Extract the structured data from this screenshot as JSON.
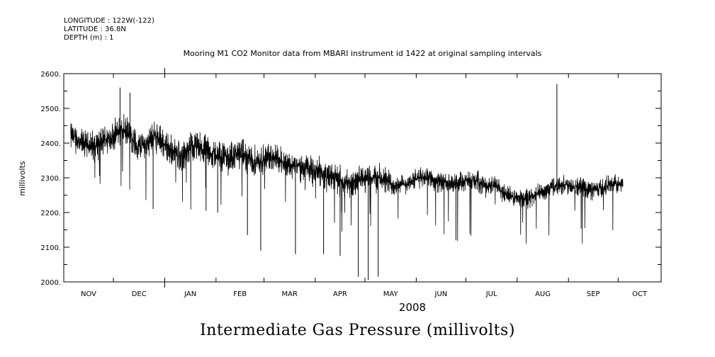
{
  "header": {
    "longitude": "LONGITUDE : 122W(-122)",
    "latitude": "LATITUDE : 36.8N",
    "depth": "DEPTH (m) : 1"
  },
  "caption": "Intermediate Gas Pressure (millivolts)",
  "chart_data": {
    "type": "line",
    "title": "Mooring M1 CO2 Monitor data from MBARI instrument id 1422 at original sampling intervals",
    "ylabel": "millivolts",
    "xlabel": "2008",
    "ylim": [
      2000,
      2600
    ],
    "yticks": [
      2000,
      2100,
      2200,
      2300,
      2400,
      2500,
      2600
    ],
    "ytick_labels": [
      "2000.",
      "2100.",
      "2200.",
      "2300.",
      "2400.",
      "2500.",
      "2600."
    ],
    "xlim_days": [
      0,
      361
    ],
    "month_labels": [
      "NOV",
      "DEC",
      "JAN",
      "FEB",
      "MAR",
      "APR",
      "MAY",
      "JUN",
      "JUL",
      "AUG",
      "SEP",
      "OCT"
    ],
    "month_start_days": [
      0,
      30,
      61,
      92,
      121,
      152,
      182,
      213,
      243,
      274,
      305,
      335
    ],
    "year_boundary_day": 61,
    "grid": false,
    "series": [
      {
        "name": "Intermediate Gas Pressure",
        "days": [
          5,
          10,
          15,
          20,
          25,
          30,
          35,
          40,
          45,
          50,
          55,
          60,
          65,
          70,
          75,
          80,
          85,
          90,
          95,
          100,
          105,
          110,
          115,
          120,
          125,
          130,
          135,
          140,
          145,
          150,
          155,
          160,
          165,
          170,
          175,
          180,
          185,
          190,
          195,
          200,
          205,
          210,
          215,
          220,
          225,
          230,
          235,
          240,
          245,
          250,
          255,
          260,
          265,
          270,
          275,
          280,
          285,
          290,
          295,
          300,
          305,
          310,
          315,
          320,
          325,
          330
        ],
        "mean": [
          2420,
          2400,
          2390,
          2395,
          2410,
          2420,
          2440,
          2420,
          2390,
          2400,
          2420,
          2400,
          2380,
          2360,
          2380,
          2390,
          2380,
          2370,
          2360,
          2360,
          2370,
          2360,
          2350,
          2350,
          2360,
          2355,
          2340,
          2335,
          2330,
          2320,
          2320,
          2300,
          2300,
          2290,
          2280,
          2295,
          2300,
          2300,
          2290,
          2280,
          2280,
          2290,
          2300,
          2305,
          2290,
          2285,
          2280,
          2290,
          2290,
          2290,
          2275,
          2280,
          2260,
          2245,
          2240,
          2240,
          2250,
          2260,
          2275,
          2280,
          2280,
          2275,
          2270,
          2265,
          2270,
          2280
        ],
        "spikes": [
          {
            "day": 34,
            "value": 2560
          },
          {
            "day": 40,
            "value": 2545
          },
          {
            "day": 54,
            "value": 2210
          },
          {
            "day": 86,
            "value": 2205
          },
          {
            "day": 93,
            "value": 2200
          },
          {
            "day": 111,
            "value": 2135
          },
          {
            "day": 119,
            "value": 2090
          },
          {
            "day": 140,
            "value": 2080
          },
          {
            "day": 157,
            "value": 2080
          },
          {
            "day": 167,
            "value": 2075
          },
          {
            "day": 178,
            "value": 2015
          },
          {
            "day": 184,
            "value": 2005
          },
          {
            "day": 190,
            "value": 2015
          },
          {
            "day": 237,
            "value": 2120
          },
          {
            "day": 298,
            "value": 2570
          }
        ],
        "end_day": 338
      }
    ]
  }
}
